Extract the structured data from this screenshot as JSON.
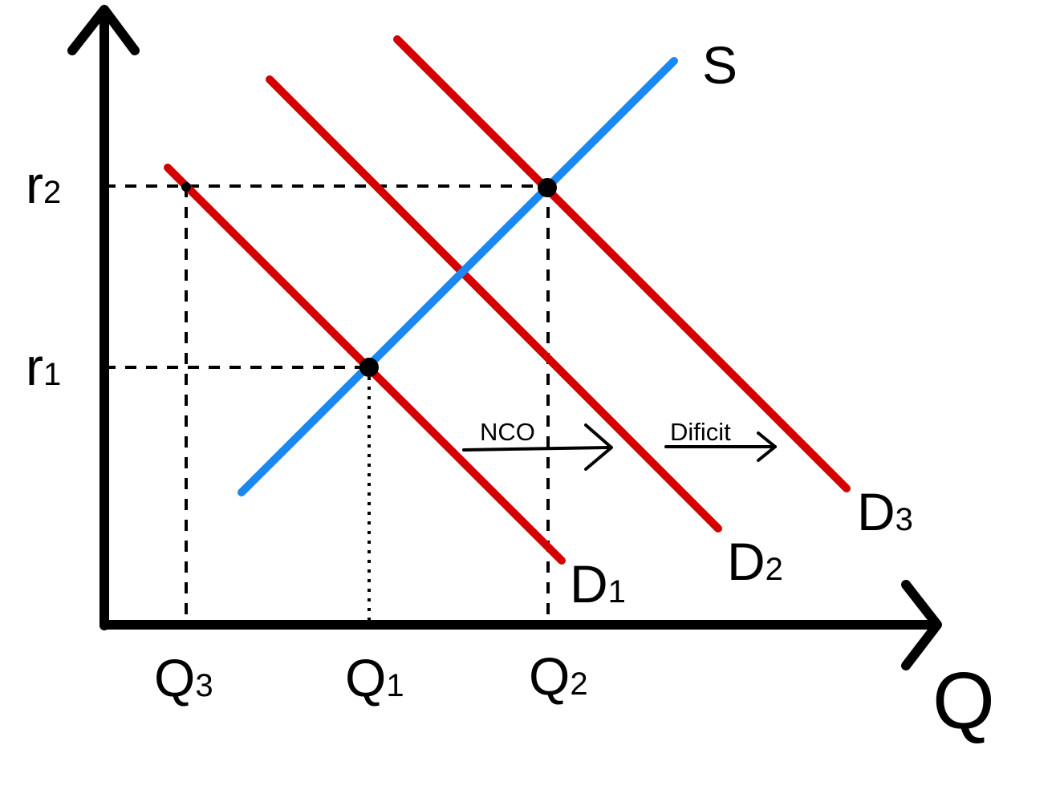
{
  "colors": {
    "axis": "#000000",
    "supply": "#1a88f0",
    "demand": "#d40000",
    "guide": "#000000"
  },
  "axes": {
    "x_label": "Q",
    "y_ticks": [
      {
        "base": "r",
        "sub": "2"
      },
      {
        "base": "r",
        "sub": "1"
      }
    ],
    "x_ticks": [
      {
        "base": "Q",
        "sub": "3"
      },
      {
        "base": "Q",
        "sub": "1"
      },
      {
        "base": "Q",
        "sub": "2"
      }
    ]
  },
  "curves": {
    "supply": {
      "base": "S"
    },
    "demand": [
      {
        "base": "D",
        "sub": "1"
      },
      {
        "base": "D",
        "sub": "2"
      },
      {
        "base": "D",
        "sub": "3"
      }
    ]
  },
  "shifts": {
    "nco": "NCO",
    "deficit": "Dificit"
  }
}
